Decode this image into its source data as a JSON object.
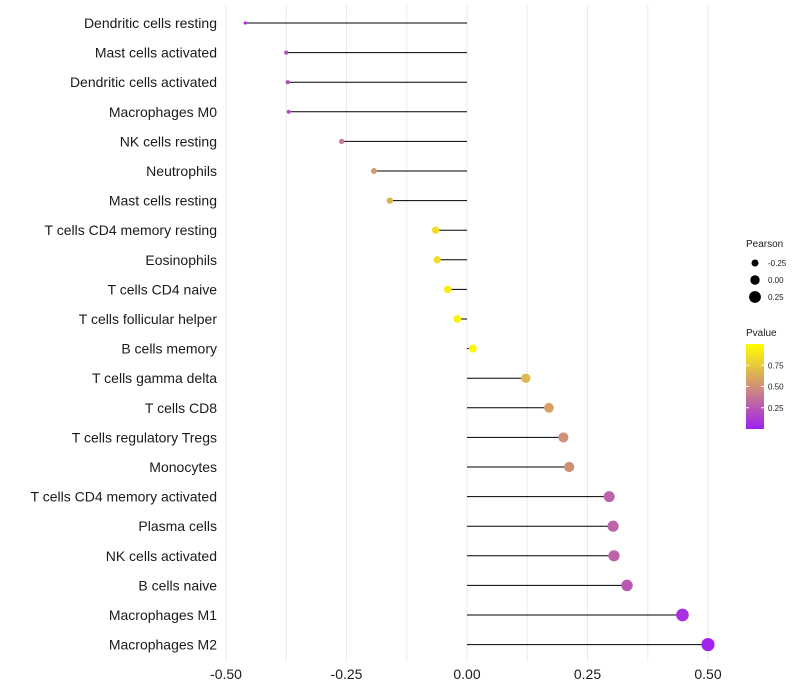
{
  "chart_data": {
    "type": "lollipop",
    "xlim": [
      -0.5,
      0.5
    ],
    "x_ticks": [
      -0.5,
      -0.25,
      0,
      0.25,
      0.5
    ],
    "x_tick_labels": [
      "-0.50",
      "-0.25",
      "0.00",
      "0.25",
      "0.50"
    ],
    "points": [
      {
        "label": "Dendritic cells resting",
        "value": -0.46,
        "pvalue": 0.05
      },
      {
        "label": "Mast cells activated",
        "value": -0.375,
        "pvalue": 0.2
      },
      {
        "label": "Dendritic cells activated",
        "value": -0.372,
        "pvalue": 0.2
      },
      {
        "label": "Macrophages M0",
        "value": -0.37,
        "pvalue": 0.2
      },
      {
        "label": "NK cells resting",
        "value": -0.26,
        "pvalue": 0.4
      },
      {
        "label": "Neutrophils",
        "value": -0.193,
        "pvalue": 0.55
      },
      {
        "label": "Mast cells resting",
        "value": -0.16,
        "pvalue": 0.65
      },
      {
        "label": "T cells CD4 memory resting",
        "value": -0.065,
        "pvalue": 0.85
      },
      {
        "label": "Eosinophils",
        "value": -0.062,
        "pvalue": 0.85
      },
      {
        "label": "T cells CD4 naive",
        "value": -0.04,
        "pvalue": 0.92
      },
      {
        "label": "T cells follicular helper",
        "value": -0.02,
        "pvalue": 0.95
      },
      {
        "label": "B cells memory",
        "value": 0.012,
        "pvalue": 0.97
      },
      {
        "label": "T cells gamma delta",
        "value": 0.122,
        "pvalue": 0.68
      },
      {
        "label": "T cells CD8",
        "value": 0.17,
        "pvalue": 0.58
      },
      {
        "label": "T cells regulatory  Tregs ",
        "value": 0.2,
        "pvalue": 0.5
      },
      {
        "label": "Monocytes",
        "value": 0.212,
        "pvalue": 0.5
      },
      {
        "label": "T cells CD4 memory activated",
        "value": 0.295,
        "pvalue": 0.3
      },
      {
        "label": "Plasma cells",
        "value": 0.303,
        "pvalue": 0.3
      },
      {
        "label": "NK cells activated",
        "value": 0.305,
        "pvalue": 0.3
      },
      {
        "label": "B cells naive",
        "value": 0.332,
        "pvalue": 0.25
      },
      {
        "label": "Macrophages M1",
        "value": 0.447,
        "pvalue": 0.07
      },
      {
        "label": "Macrophages M2",
        "value": 0.5,
        "pvalue": 0.02
      }
    ],
    "legend_size": {
      "title": "Pearson",
      "values": [
        -0.25,
        0,
        0.25
      ],
      "labels": [
        "-0.25",
        "0.00",
        "0.25"
      ]
    },
    "legend_color": {
      "title": "Pvalue",
      "range": [
        0,
        1
      ],
      "breaks": [
        0.25,
        0.5,
        0.75
      ],
      "labels": [
        "0.25",
        "0.50",
        "0.75"
      ],
      "low_color": "#a020f0",
      "high_color": "#ffff00"
    },
    "colors": {
      "gridline": "#ebebeb",
      "stem": "#000000",
      "text": "#1a1a1a"
    }
  }
}
